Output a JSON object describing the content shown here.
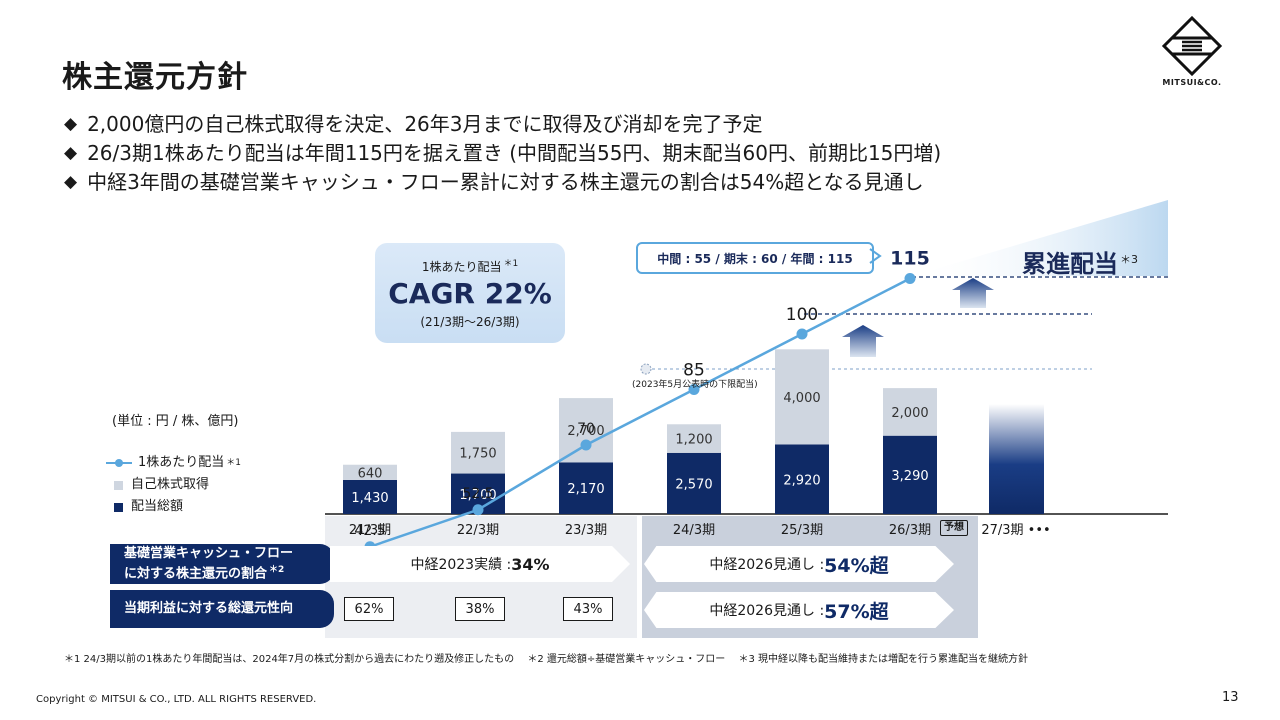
{
  "title": "株主還元方針",
  "bullets": [
    "2,000億円の自己株式取得を決定、26年3月までに取得及び消却を完了予定",
    "26/3期1株あたり配当は年間115円を据え置き (中間配当55円、期末配当60円、前期比15円増)",
    "中経3年間の基礎営業キャッシュ・フロー累計に対する株主還元の割合は54%超となる見通し"
  ],
  "bullet_marker": "◆",
  "logo_text": "MITSUI&CO.",
  "cagr": {
    "label": "1株あたり配当",
    "mark": "＊1",
    "value": "CAGR 22%",
    "period": "(21/3期～26/3期)"
  },
  "unit": "(単位 : 円 / 株、億円)",
  "legend": {
    "dps": "1株あたり配当",
    "dps_mark": "＊1",
    "buyback": "自己株式取得",
    "dividend": "配当総額"
  },
  "badge": "中間 : 55 / 期末 : 60 / 年間 : 115",
  "ruiten": "累進配当",
  "ruiten_mark": "＊3",
  "lower_dividend_note": "(2023年5月公表時の下限配当)",
  "forecast_tag": "予想",
  "chart_data": {
    "type": "bar",
    "categories": [
      "21/3期",
      "22/3期",
      "23/3期",
      "24/3期",
      "25/3期",
      "26/3期",
      "27/3期"
    ],
    "series": [
      {
        "name": "配当総額",
        "values": [
          1430,
          1700,
          2170,
          2570,
          2920,
          3290,
          null
        ]
      },
      {
        "name": "自己株式取得",
        "values": [
          640,
          1750,
          2700,
          1200,
          4000,
          2000,
          null
        ]
      },
      {
        "name": "1株あたり配当",
        "type": "line",
        "values": [
          42.5,
          52.5,
          70,
          85,
          100,
          115,
          null
        ]
      }
    ],
    "dividend_labels": [
      "1,430",
      "1,700",
      "2,170",
      "2,570",
      "2,920",
      "3,290"
    ],
    "buyback_labels": [
      "640",
      "1,750",
      "2,700",
      "1,200",
      "4,000",
      "2,000"
    ],
    "dps_labels": [
      "42.5",
      "52.5",
      "70",
      "85",
      "100",
      "115"
    ],
    "lower_limit_dividend_24_3": 80,
    "extra_category_suffix": "•••",
    "colors": {
      "dividend": "#0f2a66",
      "buyback": "#cfd6e0",
      "line": "#5aa7dd"
    }
  },
  "rows": {
    "ratio_label_1": "基礎営業キャッシュ・フロー",
    "ratio_label_2": "に対する株主還元の割合",
    "ratio_mark": "＊2",
    "ratio_2023": "中経2023実績 : ",
    "ratio_2023_value": "34%",
    "ratio_2026": "中経2026見通し : ",
    "ratio_2026_value": "54%超",
    "payout_label": "当期利益に対する総還元性向",
    "payout_values": [
      "62%",
      "38%",
      "43%"
    ],
    "payout_2026": "中経2026見通し : ",
    "payout_2026_value": "57%超"
  },
  "footnote": "＊1 24/3期以前の1株あたり年間配当は、2024年7月の株式分割から過去にわたり遡及修正したもの　 ＊2 還元総額÷基礎営業キャッシュ・フロー　 ＊3 現中経以降も配当維持または増配を行う累進配当を継続方針",
  "copyright": "Copyright © MITSUI & CO., LTD. ALL RIGHTS RESERVED.",
  "page_number": "13"
}
